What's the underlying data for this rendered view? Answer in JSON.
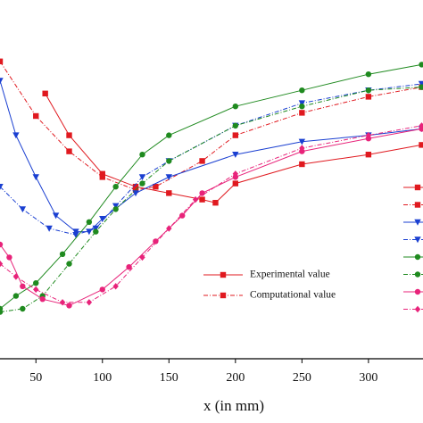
{
  "chart_data": {
    "type": "line",
    "xlabel": "x (in mm)",
    "xlim": [
      23,
      341
    ],
    "xticks": [
      50,
      100,
      150,
      200,
      250,
      300
    ],
    "ylim": [
      0,
      100
    ],
    "series": [
      {
        "name": "Experimental value",
        "color": "#e0191f",
        "marker": "square",
        "dash": "solid",
        "x": [
          57,
          75,
          100,
          125,
          150,
          175,
          185,
          200,
          250,
          300,
          340
        ],
        "values": [
          82,
          69,
          57,
          53,
          51,
          49,
          48,
          54,
          60,
          63,
          66
        ]
      },
      {
        "name": "Computational value",
        "color": "#e0191f",
        "marker": "square",
        "dash": "dashdot",
        "x": [
          23,
          50,
          75,
          100,
          125,
          140,
          175,
          200,
          250,
          300,
          340
        ],
        "values": [
          92,
          75,
          64,
          56,
          52,
          53,
          61,
          69,
          76,
          81,
          84
        ]
      },
      {
        "color": "#1a3fd1",
        "marker": "triangle",
        "dash": "solid",
        "x": [
          23,
          35,
          50,
          65,
          80,
          90,
          100,
          125,
          150,
          200,
          250,
          300,
          340
        ],
        "values": [
          86,
          69,
          56,
          44,
          39,
          39,
          43,
          51,
          56,
          63,
          67,
          69,
          71
        ]
      },
      {
        "color": "#1a3fd1",
        "marker": "triangle",
        "dash": "dashdot",
        "x": [
          23,
          40,
          60,
          80,
          95,
          110,
          130,
          150,
          200,
          250,
          300,
          340
        ],
        "values": [
          53,
          46,
          40,
          38,
          40,
          47,
          56,
          61,
          72,
          79,
          83,
          85
        ]
      },
      {
        "color": "#1f8a1f",
        "marker": "circle",
        "dash": "solid",
        "x": [
          23,
          35,
          50,
          70,
          90,
          110,
          130,
          150,
          200,
          250,
          300,
          340
        ],
        "values": [
          15,
          19,
          23,
          32,
          42,
          53,
          63,
          69,
          78,
          83,
          88,
          91
        ]
      },
      {
        "color": "#1f8a1f",
        "marker": "circle",
        "dash": "dashdot",
        "x": [
          23,
          40,
          55,
          75,
          95,
          110,
          130,
          150,
          200,
          250,
          300,
          340
        ],
        "values": [
          14,
          15,
          19,
          29,
          39,
          46,
          54,
          61,
          72,
          78,
          83,
          84
        ]
      },
      {
        "color": "#e8237a",
        "marker": "circle",
        "dash": "solid",
        "x": [
          23,
          30,
          40,
          55,
          75,
          100,
          120,
          140,
          160,
          175,
          200,
          250,
          300,
          340
        ],
        "values": [
          35,
          31,
          22,
          18,
          16,
          21,
          28,
          36,
          44,
          51,
          56,
          64,
          68,
          71
        ]
      },
      {
        "color": "#e8237a",
        "marker": "diamond",
        "dash": "dashdot",
        "x": [
          23,
          35,
          50,
          70,
          90,
          110,
          130,
          150,
          170,
          200,
          250,
          300,
          340
        ],
        "values": [
          29,
          25,
          21,
          17,
          17,
          22,
          31,
          40,
          49,
          57,
          65,
          69,
          72
        ]
      }
    ]
  }
}
